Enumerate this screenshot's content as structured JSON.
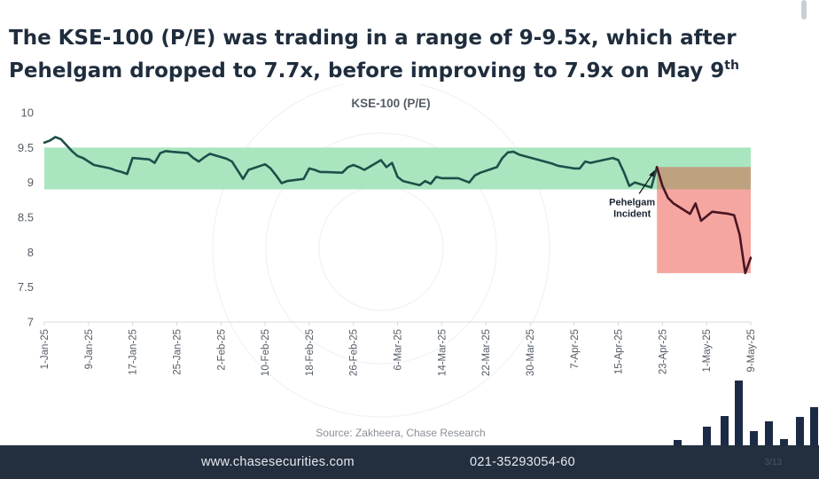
{
  "slide": {
    "title_main": "The KSE-100 (P/E) was trading in a range of 9-9.5x, which after Pehelgam dropped to 7.7x, before improving to 7.9x on May 9",
    "title_sup": "th"
  },
  "footer": {
    "website": "www.chasesecurities.com",
    "phone": "021-35293054-60",
    "page": "3/13"
  },
  "colors": {
    "line": "#1e4f49",
    "line_after": "#4a1523",
    "range_band": "#a9e6c0",
    "drop_box": "#f6a6a0",
    "overlap_box": "#bea280",
    "footer_bg": "#232f3f",
    "title_text": "#1f2d3d",
    "deco_bars": "#1c2b45"
  },
  "chart_data": {
    "type": "line",
    "title": "KSE-100 (P/E)",
    "source": "Source: Zakheera, Chase Research",
    "annotation": {
      "lines": [
        "Pehelgam",
        "Incident"
      ],
      "date": "2025-04-22",
      "value": 9.22
    },
    "ylim": [
      7,
      10
    ],
    "yticks": [
      "10",
      "9.5",
      "9",
      "8.5",
      "8",
      "7.5",
      "7"
    ],
    "x_range": [
      "2025-01-01",
      "2025-05-09"
    ],
    "xticks": [
      {
        "date": "2025-01-01",
        "label": "1-Jan-25"
      },
      {
        "date": "2025-01-09",
        "label": "9-Jan-25"
      },
      {
        "date": "2025-01-17",
        "label": "17-Jan-25"
      },
      {
        "date": "2025-01-25",
        "label": "25-Jan-25"
      },
      {
        "date": "2025-02-02",
        "label": "2-Feb-25"
      },
      {
        "date": "2025-02-10",
        "label": "10-Feb-25"
      },
      {
        "date": "2025-02-18",
        "label": "18-Feb-25"
      },
      {
        "date": "2025-02-26",
        "label": "26-Feb-25"
      },
      {
        "date": "2025-03-06",
        "label": "6-Mar-25"
      },
      {
        "date": "2025-03-14",
        "label": "14-Mar-25"
      },
      {
        "date": "2025-03-22",
        "label": "22-Mar-25"
      },
      {
        "date": "2025-03-30",
        "label": "30-Mar-25"
      },
      {
        "date": "2025-04-07",
        "label": "7-Apr-25"
      },
      {
        "date": "2025-04-15",
        "label": "15-Apr-25"
      },
      {
        "date": "2025-04-23",
        "label": "23-Apr-25"
      },
      {
        "date": "2025-05-01",
        "label": "1-May-25"
      },
      {
        "date": "2025-05-09",
        "label": "9-May-25"
      }
    ],
    "range_band": {
      "from": 8.9,
      "to": 9.5,
      "start": "2025-01-01",
      "end": "2025-05-09"
    },
    "drop_box": {
      "from": 7.7,
      "to": 9.22,
      "start": "2025-04-22",
      "end": "2025-05-09"
    },
    "grid": false,
    "series": [
      {
        "x": [
          "2025-01-01",
          "2025-01-02",
          "2025-01-03",
          "2025-01-04",
          "2025-01-06",
          "2025-01-07",
          "2025-01-08",
          "2025-01-10",
          "2025-01-13",
          "2025-01-14",
          "2025-01-15",
          "2025-01-16",
          "2025-01-17",
          "2025-01-20",
          "2025-01-21",
          "2025-01-22",
          "2025-01-23",
          "2025-01-24",
          "2025-01-27",
          "2025-01-28",
          "2025-01-29",
          "2025-01-30",
          "2025-01-31",
          "2025-02-03",
          "2025-02-04",
          "2025-02-06",
          "2025-02-07",
          "2025-02-10",
          "2025-02-11",
          "2025-02-12",
          "2025-02-13",
          "2025-02-14",
          "2025-02-17",
          "2025-02-18",
          "2025-02-19",
          "2025-02-20",
          "2025-02-21",
          "2025-02-24",
          "2025-02-25",
          "2025-02-26",
          "2025-02-27",
          "2025-02-28",
          "2025-03-03",
          "2025-03-04",
          "2025-03-05",
          "2025-03-06",
          "2025-03-07",
          "2025-03-10",
          "2025-03-11",
          "2025-03-12",
          "2025-03-13",
          "2025-03-14",
          "2025-03-17",
          "2025-03-18",
          "2025-03-19",
          "2025-03-20",
          "2025-03-21",
          "2025-03-24",
          "2025-03-25",
          "2025-03-26",
          "2025-03-27",
          "2025-03-28",
          "2025-04-03",
          "2025-04-04",
          "2025-04-07",
          "2025-04-08",
          "2025-04-09",
          "2025-04-10",
          "2025-04-11",
          "2025-04-14",
          "2025-04-15",
          "2025-04-16",
          "2025-04-17",
          "2025-04-18",
          "2025-04-21",
          "2025-04-22"
        ],
        "values": [
          9.57,
          9.6,
          9.65,
          9.62,
          9.45,
          9.38,
          9.35,
          9.25,
          9.2,
          9.17,
          9.15,
          9.12,
          9.35,
          9.33,
          9.28,
          9.42,
          9.45,
          9.44,
          9.42,
          9.35,
          9.3,
          9.36,
          9.41,
          9.34,
          9.3,
          9.05,
          9.18,
          9.26,
          9.2,
          9.1,
          8.99,
          9.02,
          9.05,
          9.2,
          9.18,
          9.15,
          9.15,
          9.14,
          9.22,
          9.25,
          9.22,
          9.18,
          9.32,
          9.22,
          9.28,
          9.08,
          9.02,
          8.96,
          9.02,
          8.98,
          9.08,
          9.06,
          9.06,
          9.03,
          9.0,
          9.1,
          9.14,
          9.22,
          9.35,
          9.43,
          9.44,
          9.4,
          9.27,
          9.24,
          9.2,
          9.2,
          9.3,
          9.28,
          9.3,
          9.35,
          9.32,
          9.15,
          8.95,
          9.0,
          8.93,
          9.22
        ]
      },
      {
        "x": [
          "2025-04-22",
          "2025-04-23",
          "2025-04-24",
          "2025-04-25",
          "2025-04-28",
          "2025-04-29",
          "2025-04-30",
          "2025-05-02",
          "2025-05-05",
          "2025-05-06",
          "2025-05-07",
          "2025-05-08",
          "2025-05-09"
        ],
        "values": [
          9.22,
          8.95,
          8.78,
          8.7,
          8.55,
          8.7,
          8.45,
          8.58,
          8.55,
          8.53,
          8.25,
          7.7,
          7.92
        ]
      }
    ]
  }
}
